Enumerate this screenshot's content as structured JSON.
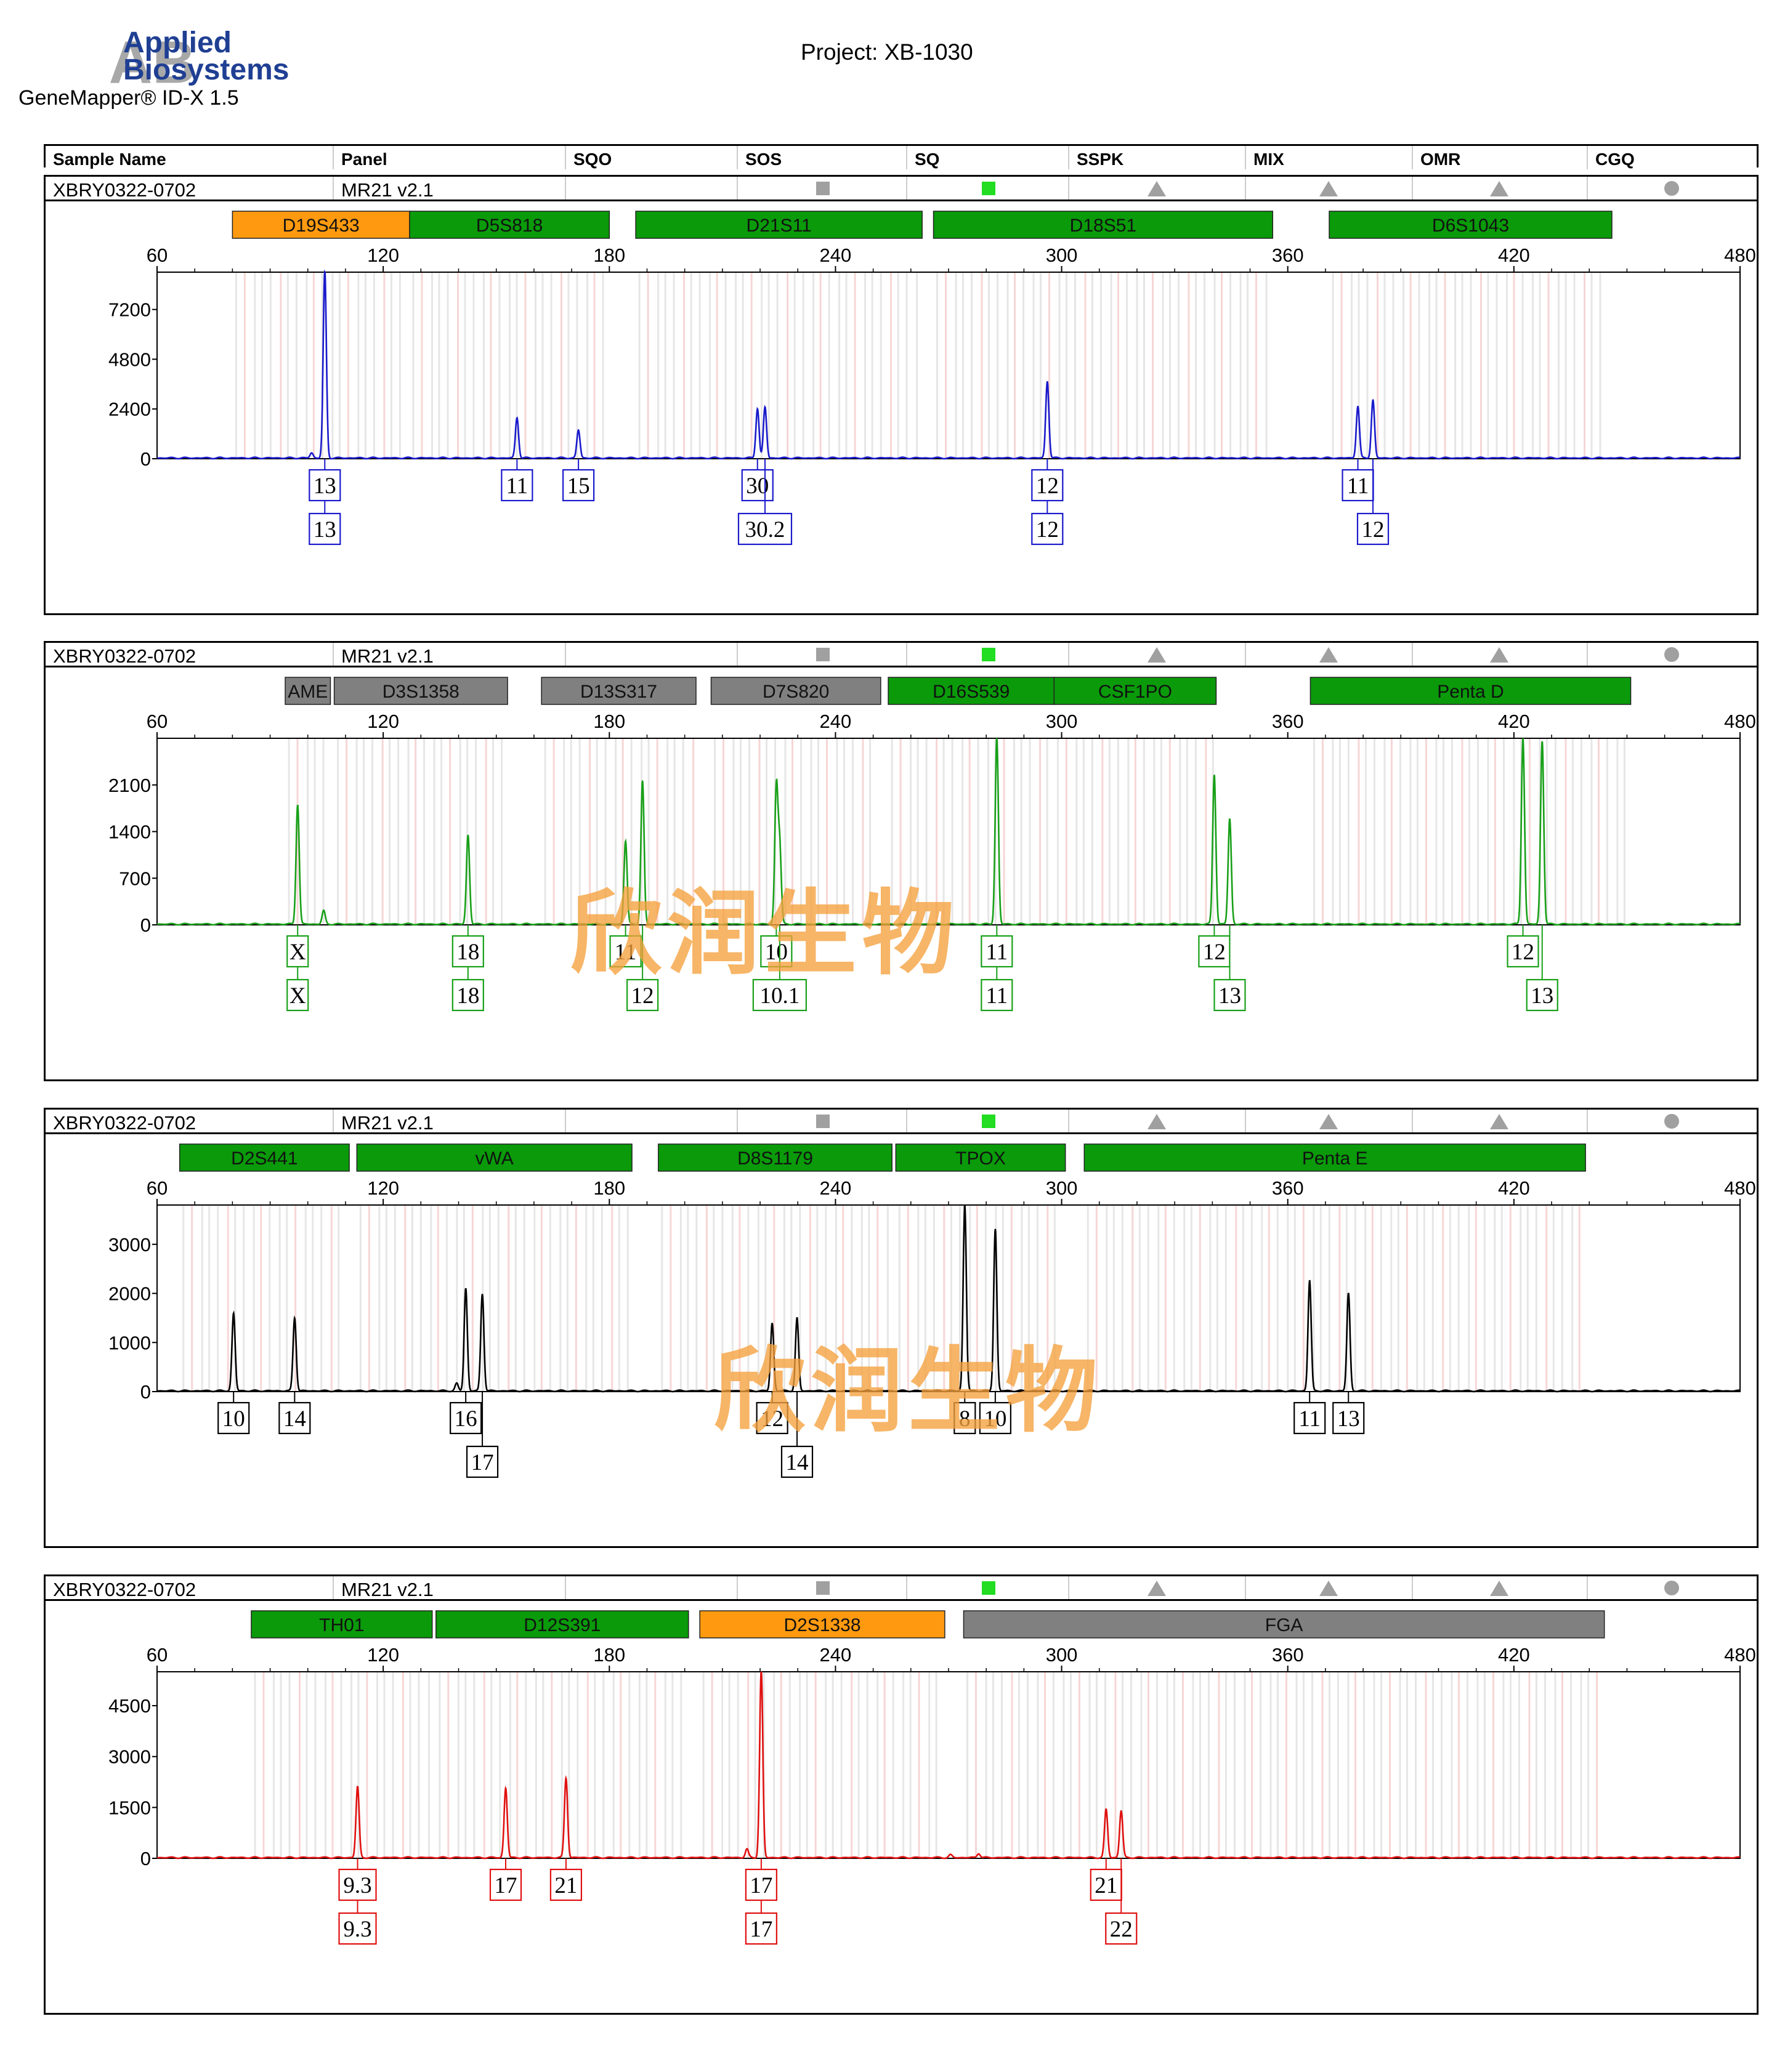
{
  "logo": {
    "line1": "Applied",
    "line2": "Biosystems",
    "mark": "AB"
  },
  "software": "GeneMapper® ID-X  1.5",
  "project": "Project: XB-1030",
  "columns": [
    "Sample Name",
    "Panel",
    "SQO",
    "SOS",
    "SQ",
    "SSPK",
    "MIX",
    "OMR",
    "CGQ"
  ],
  "colors": {
    "blue": "#1a1acc",
    "green": "#18a018",
    "black": "#000000",
    "red": "#e01010",
    "marker_green": "#0a9a0a",
    "marker_orange": "#ff9a10",
    "marker_gray": "#808080",
    "sq_green": "#22dd22",
    "icon_gray": "#a0a0a0"
  },
  "watermark": "欣润生物",
  "panels": [
    {
      "sample": "XBRY0322-0702",
      "panel": "MR21  v2.1",
      "quality": [
        "square-gray",
        "square-green",
        "triangle",
        "triangle",
        "triangle",
        "circle"
      ],
      "dye": "blue",
      "markers": [
        {
          "name": "D19S433",
          "start": 80,
          "end": 127,
          "color": "orange"
        },
        {
          "name": "D5S818",
          "start": 127,
          "end": 180,
          "color": "green"
        },
        {
          "name": "D21S11",
          "start": 187,
          "end": 263,
          "color": "green"
        },
        {
          "name": "D18S51",
          "start": 266,
          "end": 356,
          "color": "green"
        },
        {
          "name": "D6S1043",
          "start": 371,
          "end": 446,
          "color": "green"
        }
      ],
      "chart_data": {
        "type": "line",
        "xlim": [
          60,
          480
        ],
        "xticks": [
          60,
          120,
          180,
          240,
          300,
          360,
          420,
          480
        ],
        "ylim": [
          0,
          9000
        ],
        "yticks": [
          0,
          2400,
          4800,
          7200
        ],
        "peaks": [
          {
            "x": 104.5,
            "y": 9000
          },
          {
            "x": 101,
            "y": 250
          },
          {
            "x": 155.5,
            "y": 1950
          },
          {
            "x": 171.8,
            "y": 1350
          },
          {
            "x": 219.3,
            "y": 2400
          },
          {
            "x": 221.3,
            "y": 2450
          },
          {
            "x": 296.2,
            "y": 3700
          },
          {
            "x": 378.6,
            "y": 2500
          },
          {
            "x": 382.6,
            "y": 2800
          }
        ]
      },
      "alleles": [
        {
          "x": 104.5,
          "labels": [
            "13",
            "13"
          ]
        },
        {
          "x": 155.5,
          "labels": [
            "11"
          ]
        },
        {
          "x": 171.8,
          "labels": [
            "15"
          ]
        },
        {
          "x": 219.3,
          "labels": [
            "30"
          ]
        },
        {
          "x": 221.3,
          "labels": [
            "",
            "30.2"
          ]
        },
        {
          "x": 296.2,
          "labels": [
            "12",
            "12"
          ]
        },
        {
          "x": 378.6,
          "labels": [
            "11"
          ]
        },
        {
          "x": 382.6,
          "labels": [
            "",
            "12"
          ]
        }
      ]
    },
    {
      "sample": "XBRY0322-0702",
      "panel": "MR21  v2.1",
      "quality": [
        "square-gray",
        "square-green",
        "triangle",
        "triangle",
        "triangle",
        "circle"
      ],
      "dye": "green",
      "markers": [
        {
          "name": "AME",
          "start": 94,
          "end": 106,
          "color": "gray"
        },
        {
          "name": "D3S1358",
          "start": 107,
          "end": 153,
          "color": "gray"
        },
        {
          "name": "D13S317",
          "start": 162,
          "end": 203,
          "color": "gray"
        },
        {
          "name": "D7S820",
          "start": 207,
          "end": 252,
          "color": "gray"
        },
        {
          "name": "D16S539",
          "start": 254,
          "end": 298,
          "color": "green"
        },
        {
          "name": "CSF1PO",
          "start": 298,
          "end": 341,
          "color": "green"
        },
        {
          "name": "Penta D",
          "start": 366,
          "end": 451,
          "color": "green"
        }
      ],
      "chart_data": {
        "type": "line",
        "xlim": [
          60,
          480
        ],
        "xticks": [
          60,
          120,
          180,
          240,
          300,
          360,
          420,
          480
        ],
        "ylim": [
          0,
          2800
        ],
        "yticks": [
          0,
          700,
          1400,
          2100
        ],
        "peaks": [
          {
            "x": 97.3,
            "y": 1800
          },
          {
            "x": 104.2,
            "y": 200
          },
          {
            "x": 142.5,
            "y": 1340
          },
          {
            "x": 184.3,
            "y": 1250
          },
          {
            "x": 188.8,
            "y": 2150
          },
          {
            "x": 224.3,
            "y": 2040
          },
          {
            "x": 225.2,
            "y": 1150
          },
          {
            "x": 282.8,
            "y": 2800
          },
          {
            "x": 340.5,
            "y": 2250
          },
          {
            "x": 344.6,
            "y": 1580
          },
          {
            "x": 422.4,
            "y": 2800
          },
          {
            "x": 427.5,
            "y": 2750
          }
        ]
      },
      "alleles": [
        {
          "x": 97.3,
          "labels": [
            "X",
            "X"
          ]
        },
        {
          "x": 142.5,
          "labels": [
            "18",
            "18"
          ]
        },
        {
          "x": 184.3,
          "labels": [
            "11"
          ]
        },
        {
          "x": 188.8,
          "labels": [
            "",
            "12"
          ]
        },
        {
          "x": 224.3,
          "labels": [
            "10"
          ]
        },
        {
          "x": 225.2,
          "labels": [
            "",
            "10.1"
          ]
        },
        {
          "x": 282.8,
          "labels": [
            "11",
            "11"
          ]
        },
        {
          "x": 340.5,
          "labels": [
            "12"
          ]
        },
        {
          "x": 344.6,
          "labels": [
            "",
            "13"
          ]
        },
        {
          "x": 422.4,
          "labels": [
            "12"
          ]
        },
        {
          "x": 427.5,
          "labels": [
            "",
            "13"
          ]
        }
      ]
    },
    {
      "sample": "XBRY0322-0702",
      "panel": "MR21  v2.1",
      "quality": [
        "square-gray",
        "square-green",
        "triangle",
        "triangle",
        "triangle",
        "circle"
      ],
      "dye": "black",
      "markers": [
        {
          "name": "D2S441",
          "start": 66,
          "end": 111,
          "color": "green"
        },
        {
          "name": "vWA",
          "start": 113,
          "end": 186,
          "color": "green"
        },
        {
          "name": "D8S1179",
          "start": 193,
          "end": 255,
          "color": "green"
        },
        {
          "name": "TPOX",
          "start": 256,
          "end": 301,
          "color": "green"
        },
        {
          "name": "Penta E",
          "start": 306,
          "end": 439,
          "color": "green"
        }
      ],
      "chart_data": {
        "type": "line",
        "xlim": [
          60,
          480
        ],
        "xticks": [
          60,
          120,
          180,
          240,
          300,
          360,
          420,
          480
        ],
        "ylim": [
          0,
          3800
        ],
        "yticks": [
          0,
          1000,
          2000,
          3000
        ],
        "peaks": [
          {
            "x": 80.3,
            "y": 1580
          },
          {
            "x": 96.5,
            "y": 1490
          },
          {
            "x": 141.9,
            "y": 2090
          },
          {
            "x": 146.3,
            "y": 1980
          },
          {
            "x": 139.5,
            "y": 150
          },
          {
            "x": 223.2,
            "y": 1380
          },
          {
            "x": 229.8,
            "y": 1480
          },
          {
            "x": 274.3,
            "y": 3800
          },
          {
            "x": 282.4,
            "y": 3300
          },
          {
            "x": 365.8,
            "y": 2250
          },
          {
            "x": 376.1,
            "y": 1990
          }
        ]
      },
      "alleles": [
        {
          "x": 80.3,
          "labels": [
            "10"
          ]
        },
        {
          "x": 96.5,
          "labels": [
            "14"
          ]
        },
        {
          "x": 141.9,
          "labels": [
            "16"
          ]
        },
        {
          "x": 146.3,
          "labels": [
            "",
            "17"
          ]
        },
        {
          "x": 223.2,
          "labels": [
            "12"
          ]
        },
        {
          "x": 229.8,
          "labels": [
            "",
            "14"
          ]
        },
        {
          "x": 274.3,
          "labels": [
            "8"
          ]
        },
        {
          "x": 282.4,
          "labels": [
            "10"
          ]
        },
        {
          "x": 365.8,
          "labels": [
            "11"
          ]
        },
        {
          "x": 376.1,
          "labels": [
            "13"
          ]
        }
      ]
    },
    {
      "sample": "XBRY0322-0702",
      "panel": "MR21  v2.1",
      "quality": [
        "square-gray",
        "square-green",
        "triangle",
        "triangle",
        "triangle",
        "circle"
      ],
      "dye": "red",
      "markers": [
        {
          "name": "TH01",
          "start": 85,
          "end": 133,
          "color": "green"
        },
        {
          "name": "D12S391",
          "start": 134,
          "end": 201,
          "color": "green"
        },
        {
          "name": "D2S1338",
          "start": 204,
          "end": 269,
          "color": "orange"
        },
        {
          "name": "FGA",
          "start": 274,
          "end": 444,
          "color": "gray"
        }
      ],
      "chart_data": {
        "type": "line",
        "xlim": [
          60,
          480
        ],
        "xticks": [
          60,
          120,
          180,
          240,
          300,
          360,
          420,
          480
        ],
        "ylim": [
          0,
          5500
        ],
        "yticks": [
          0,
          1500,
          3000,
          4500
        ],
        "peaks": [
          {
            "x": 113.2,
            "y": 2100
          },
          {
            "x": 152.5,
            "y": 2050
          },
          {
            "x": 168.5,
            "y": 2350
          },
          {
            "x": 220.3,
            "y": 5500
          },
          {
            "x": 216.5,
            "y": 250
          },
          {
            "x": 311.8,
            "y": 1420
          },
          {
            "x": 315.8,
            "y": 1380
          },
          {
            "x": 270.5,
            "y": 80
          },
          {
            "x": 278,
            "y": 130
          }
        ]
      },
      "alleles": [
        {
          "x": 113.2,
          "labels": [
            "9.3",
            "9.3"
          ]
        },
        {
          "x": 152.5,
          "labels": [
            "17"
          ]
        },
        {
          "x": 168.5,
          "labels": [
            "21"
          ]
        },
        {
          "x": 220.3,
          "labels": [
            "17",
            "17"
          ]
        },
        {
          "x": 311.8,
          "labels": [
            "21"
          ]
        },
        {
          "x": 315.8,
          "labels": [
            "",
            "22"
          ]
        }
      ]
    }
  ]
}
